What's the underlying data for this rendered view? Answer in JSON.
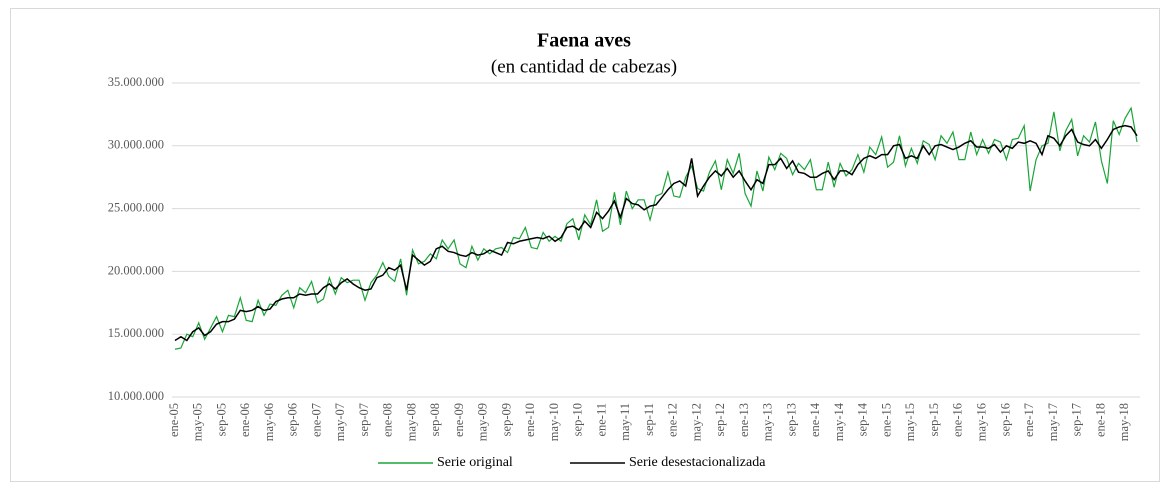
{
  "chart_data": {
    "type": "line",
    "title": "Faena aves",
    "subtitle": "(en cantidad de cabezas)",
    "categories": [
      "ene-05",
      null,
      null,
      null,
      "may-05",
      null,
      null,
      null,
      "sep-05",
      null,
      null,
      null,
      "ene-06",
      null,
      null,
      null,
      "may-06",
      null,
      null,
      null,
      "sep-06",
      null,
      null,
      null,
      "ene-07",
      null,
      null,
      null,
      "may-07",
      null,
      null,
      null,
      "sep-07",
      null,
      null,
      null,
      "ene-08",
      null,
      null,
      null,
      "may-08",
      null,
      null,
      null,
      "sep-08",
      null,
      null,
      null,
      "ene-09",
      null,
      null,
      null,
      "may-09",
      null,
      null,
      null,
      "sep-09",
      null,
      null,
      null,
      "ene-10",
      null,
      null,
      null,
      "may-10",
      null,
      null,
      null,
      "sep-10",
      null,
      null,
      null,
      "ene-11",
      null,
      null,
      null,
      "may-11",
      null,
      null,
      null,
      "sep-11",
      null,
      null,
      null,
      "ene-12",
      null,
      null,
      null,
      "may-12",
      null,
      null,
      null,
      "sep-12",
      null,
      null,
      null,
      "ene-13",
      null,
      null,
      null,
      "may-13",
      null,
      null,
      null,
      "sep-13",
      null,
      null,
      null,
      "ene-14",
      null,
      null,
      null,
      "may-14",
      null,
      null,
      null,
      "sep-14",
      null,
      null,
      null,
      "ene-15",
      null,
      null,
      null,
      "may-15",
      null,
      null,
      null,
      "sep-15",
      null,
      null,
      null,
      "ene-16",
      null,
      null,
      null,
      "may-16",
      null,
      null,
      null,
      "sep-16",
      null,
      null,
      null,
      "ene-17",
      null,
      null,
      null,
      "may-17",
      null,
      null,
      null,
      "sep-17",
      null,
      null,
      null,
      "ene-18",
      null,
      null,
      null,
      "may-18",
      null,
      null
    ],
    "series": [
      {
        "name": "Serie original",
        "color": "#1aa538",
        "values": [
          13800000,
          13900000,
          15000000,
          14800000,
          15900000,
          14600000,
          15500000,
          16400000,
          15200000,
          16500000,
          16400000,
          17900000,
          16100000,
          16000000,
          17700000,
          16500000,
          17400000,
          17300000,
          18100000,
          18500000,
          17100000,
          18700000,
          18300000,
          19200000,
          17500000,
          17800000,
          19500000,
          18200000,
          19500000,
          19100000,
          19300000,
          19300000,
          17700000,
          19100000,
          19700000,
          20700000,
          19600000,
          19200000,
          21000000,
          18100000,
          21700000,
          20600000,
          20800000,
          21400000,
          21000000,
          22500000,
          21800000,
          22500000,
          20600000,
          20300000,
          22000000,
          20900000,
          21800000,
          21400000,
          21800000,
          21900000,
          21500000,
          22700000,
          22600000,
          23500000,
          21900000,
          21800000,
          23100000,
          22400000,
          22800000,
          22400000,
          23800000,
          24200000,
          22500000,
          24500000,
          23700000,
          25700000,
          23200000,
          23500000,
          26300000,
          23700000,
          26400000,
          25000000,
          25700000,
          25700000,
          24100000,
          26000000,
          26200000,
          27900000,
          26000000,
          25900000,
          27500000,
          28400000,
          26600000,
          26400000,
          27900000,
          28800000,
          26500000,
          28900000,
          27800000,
          29400000,
          26200000,
          25200000,
          28000000,
          26400000,
          29100000,
          28100000,
          29400000,
          29000000,
          27700000,
          28600000,
          28100000,
          28900000,
          26500000,
          26500000,
          28700000,
          26700000,
          28600000,
          27600000,
          28100000,
          29300000,
          27900000,
          29900000,
          29300000,
          30700000,
          28300000,
          28700000,
          30800000,
          28400000,
          29800000,
          28600000,
          30400000,
          30100000,
          28900000,
          30800000,
          30200000,
          31100000,
          28900000,
          28900000,
          31100000,
          29300000,
          30500000,
          29400000,
          30500000,
          30300000,
          28900000,
          30500000,
          30600000,
          31600000,
          26400000,
          28900000,
          30000000,
          30200000,
          32700000,
          29600000,
          31200000,
          32100000,
          29200000,
          30800000,
          30300000,
          31900000,
          28800000,
          27000000,
          32000000,
          30900000,
          32200000,
          33000000,
          30300000
        ]
      },
      {
        "name": "Serie desestacionalizada",
        "color": "#000000",
        "values": [
          14500000,
          14800000,
          14500000,
          15200000,
          15500000,
          14900000,
          15200000,
          15800000,
          16000000,
          16000000,
          16200000,
          16900000,
          16800000,
          16900000,
          17200000,
          16900000,
          17000000,
          17600000,
          17800000,
          17900000,
          17900000,
          18200000,
          18100000,
          18200000,
          18200000,
          18700000,
          19000000,
          18600000,
          19100000,
          19400000,
          19000000,
          18700000,
          18500000,
          18600000,
          19500000,
          19700000,
          20300000,
          20100000,
          20500000,
          18500000,
          21300000,
          20900000,
          20500000,
          20800000,
          21800000,
          22000000,
          21600000,
          21500000,
          21300000,
          21200000,
          21500000,
          21300000,
          21400000,
          21700000,
          21500000,
          21300000,
          22300000,
          22200000,
          22400000,
          22500000,
          22600000,
          22700000,
          22600000,
          22800000,
          22400000,
          22700000,
          23500000,
          23600000,
          23300000,
          24000000,
          23500000,
          24700000,
          24200000,
          24800000,
          25600000,
          24300000,
          25800000,
          25400000,
          25300000,
          24900000,
          25200000,
          25300000,
          25900000,
          26500000,
          27000000,
          27200000,
          26800000,
          29000000,
          26000000,
          26800000,
          27500000,
          28000000,
          27600000,
          28200000,
          27500000,
          28000000,
          27200000,
          26500000,
          27300000,
          27000000,
          28500000,
          28500000,
          29000000,
          28200000,
          28800000,
          27900000,
          27800000,
          27500000,
          27500000,
          27800000,
          28000000,
          27300000,
          28000000,
          28000000,
          27700000,
          28500000,
          29000000,
          29200000,
          29000000,
          29300000,
          29300000,
          30000000,
          30100000,
          29000000,
          29200000,
          29000000,
          30000000,
          29300000,
          30000000,
          30100000,
          29900000,
          29700000,
          29900000,
          30200000,
          30400000,
          29900000,
          29900000,
          29800000,
          30100000,
          29500000,
          30000000,
          29800000,
          30300000,
          30200000,
          30400000,
          30200000,
          29300000,
          30800000,
          30600000,
          30000000,
          30800000,
          31300000,
          30300000,
          30100000,
          30000000,
          30500000,
          29800000,
          30500000,
          31300000,
          31500000,
          31600000,
          31500000,
          30800000
        ]
      }
    ],
    "ylim": [
      10000000,
      35000000
    ],
    "yticks": [
      {
        "value": 10000000,
        "label": "10.000.000"
      },
      {
        "value": 15000000,
        "label": "15.000.000"
      },
      {
        "value": 20000000,
        "label": "20.000.000"
      },
      {
        "value": 25000000,
        "label": "25.000.000"
      },
      {
        "value": 30000000,
        "label": "30.000.000"
      },
      {
        "value": 35000000,
        "label": "35.000.000"
      }
    ],
    "grid": true,
    "legend": "bottom"
  }
}
